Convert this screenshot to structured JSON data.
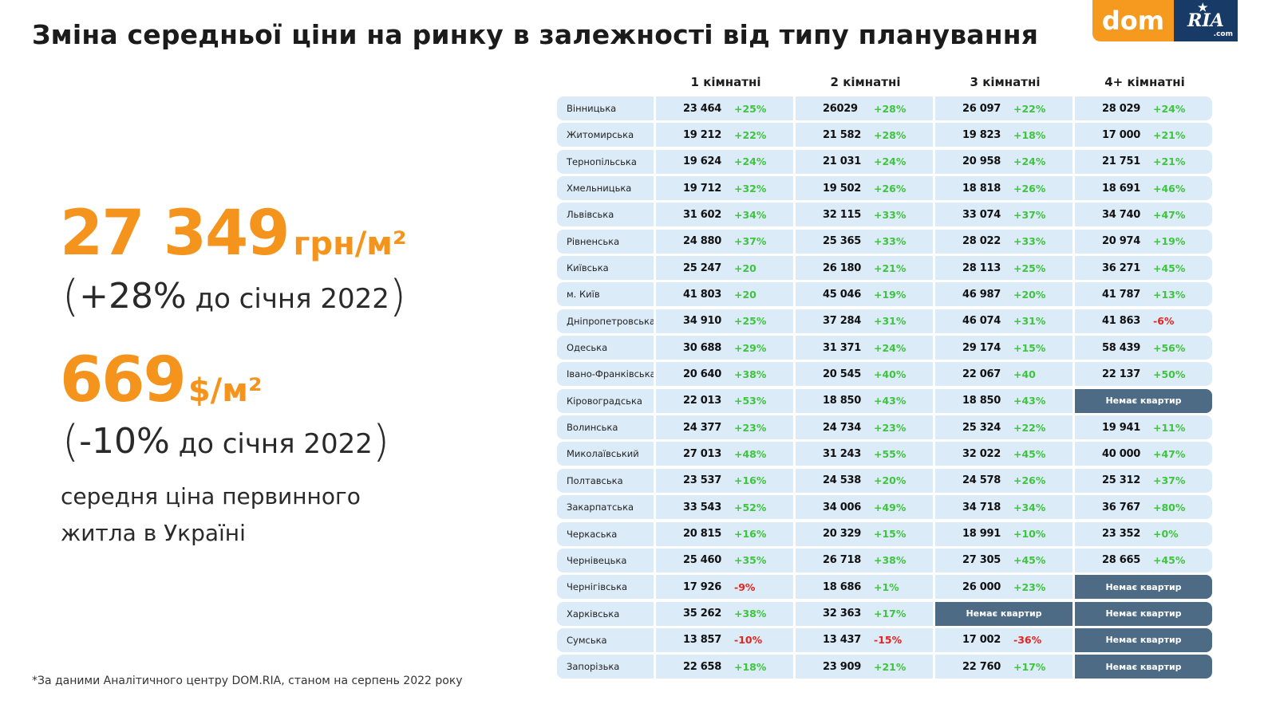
{
  "title": "Зміна середньої ціни на ринку в залежності від типу планування",
  "logo": {
    "left": "dom",
    "right": "RIA",
    "suffix": ".com"
  },
  "summary": {
    "uah_value": "27 349",
    "uah_unit": "грн/м²",
    "uah_change_open": "(",
    "uah_change_pct": "+28%",
    "uah_change_text": " до січня 2022",
    "uah_change_close": ")",
    "usd_value": "669",
    "usd_unit": "$/м²",
    "usd_change_open": "(",
    "usd_change_pct": "-10%",
    "usd_change_text": " до січня 2022",
    "usd_change_close": ")",
    "desc_line1": "середня ціна первинного",
    "desc_line2": "житла в Україні"
  },
  "footnote": "*За даними Аналітичного центру DOM.RIA, станом на серпень 2022 року",
  "table": {
    "headers": [
      "1 кімнатні",
      "2 кімнатні",
      "3 кімнатні",
      "4+ кімнатні"
    ],
    "no_flats_label": "Немає квартир",
    "colors": {
      "positive": "#3fc43f",
      "negative": "#e5241f",
      "cell_bg": "#dcebf8",
      "na_bg": "#4d6b85"
    },
    "rows": [
      {
        "region": "Вінницька",
        "cells": [
          [
            "23 464",
            "+25%"
          ],
          [
            "26029",
            "+28%"
          ],
          [
            "26 097",
            "+22%"
          ],
          [
            "28 029",
            "+24%"
          ]
        ]
      },
      {
        "region": "Житомирська",
        "cells": [
          [
            "19 212",
            "+22%"
          ],
          [
            "21 582",
            "+28%"
          ],
          [
            "19 823",
            "+18%"
          ],
          [
            "17 000",
            "+21%"
          ]
        ]
      },
      {
        "region": "Тернопільська",
        "cells": [
          [
            "19  624",
            "+24%"
          ],
          [
            "21 031",
            "+24%"
          ],
          [
            "20 958",
            "+24%"
          ],
          [
            "21 751",
            "+21%"
          ]
        ]
      },
      {
        "region": "Хмельницька",
        "cells": [
          [
            "19 712",
            "+32%"
          ],
          [
            "19 502",
            "+26%"
          ],
          [
            "18 818",
            "+26%"
          ],
          [
            "18 691",
            "+46%"
          ]
        ]
      },
      {
        "region": "Львівська",
        "cells": [
          [
            "31 602",
            "+34%"
          ],
          [
            "32 115",
            "+33%"
          ],
          [
            "33 074",
            "+37%"
          ],
          [
            "34 740",
            "+47%"
          ]
        ]
      },
      {
        "region": "Рівненська",
        "cells": [
          [
            "24 880",
            "+37%"
          ],
          [
            "25 365",
            "+33%"
          ],
          [
            "28 022",
            "+33%"
          ],
          [
            "20 974",
            "+19%"
          ]
        ]
      },
      {
        "region": "Київська",
        "cells": [
          [
            "25 247",
            "+20"
          ],
          [
            "26 180",
            "+21%"
          ],
          [
            "28 113",
            "+25%"
          ],
          [
            "36 271",
            "+45%"
          ]
        ]
      },
      {
        "region": "м. Київ",
        "cells": [
          [
            "41 803",
            "+20"
          ],
          [
            "45 046",
            "+19%"
          ],
          [
            "46 987",
            "+20%"
          ],
          [
            "41 787",
            "+13%"
          ]
        ]
      },
      {
        "region": "Дніпропетровська",
        "cells": [
          [
            "34 910",
            "+25%"
          ],
          [
            "37 284",
            "+31%"
          ],
          [
            "46 074",
            "+31%"
          ],
          [
            "41 863",
            "-6%"
          ]
        ]
      },
      {
        "region": "Одеська",
        "cells": [
          [
            "30 688",
            "+29%"
          ],
          [
            "31 371",
            "+24%"
          ],
          [
            "29 174",
            "+15%"
          ],
          [
            "58 439",
            "+56%"
          ]
        ]
      },
      {
        "region": "Івано-Франківська",
        "cells": [
          [
            "20 640",
            "+38%"
          ],
          [
            "20 545",
            "+40%"
          ],
          [
            "22 067",
            "+40"
          ],
          [
            "22 137",
            "+50%"
          ]
        ]
      },
      {
        "region": "Кіровоградська",
        "cells": [
          [
            "22 013",
            "+53%"
          ],
          [
            "18 850",
            "+43%"
          ],
          [
            "18 850",
            "+43%"
          ],
          null
        ]
      },
      {
        "region": "Волинська",
        "cells": [
          [
            "24 377",
            "+23%"
          ],
          [
            "24 734",
            "+23%"
          ],
          [
            "25 324",
            "+22%"
          ],
          [
            "19 941",
            "+11%"
          ]
        ]
      },
      {
        "region": "Миколаївський",
        "cells": [
          [
            "27 013",
            "+48%"
          ],
          [
            "31 243",
            "+55%"
          ],
          [
            "32 022",
            "+45%"
          ],
          [
            "40 000",
            "+47%"
          ]
        ]
      },
      {
        "region": "Полтавська",
        "cells": [
          [
            "23 537",
            "+16%"
          ],
          [
            "24 538",
            "+20%"
          ],
          [
            "24 578",
            "+26%"
          ],
          [
            "25 312",
            "+37%"
          ]
        ]
      },
      {
        "region": "Закарпатська",
        "cells": [
          [
            "33 543",
            "+52%"
          ],
          [
            "34 006",
            "+49%"
          ],
          [
            "34 718",
            "+34%"
          ],
          [
            "36 767",
            "+80%"
          ]
        ]
      },
      {
        "region": "Черкаська",
        "cells": [
          [
            "20 815",
            "+16%"
          ],
          [
            "20 329",
            "+15%"
          ],
          [
            "18 991",
            "+10%"
          ],
          [
            "23 352",
            "+0%"
          ]
        ]
      },
      {
        "region": "Чернівецька",
        "cells": [
          [
            "25 460",
            "+35%"
          ],
          [
            "26 718",
            "+38%"
          ],
          [
            "27 305",
            "+45%"
          ],
          [
            "28 665",
            "+45%"
          ]
        ]
      },
      {
        "region": "Чернігівська",
        "cells": [
          [
            "17 926",
            "-9%"
          ],
          [
            "18 686",
            "+1%"
          ],
          [
            "26 000",
            "+23%"
          ],
          null
        ]
      },
      {
        "region": "Харківська",
        "cells": [
          [
            "35 262",
            "+38%"
          ],
          [
            "32 363",
            "+17%"
          ],
          null,
          null
        ]
      },
      {
        "region": "Сумська",
        "cells": [
          [
            "13 857",
            "-10%"
          ],
          [
            "13 437",
            "-15%"
          ],
          [
            "17 002",
            "-36%"
          ],
          null
        ]
      },
      {
        "region": "Запорізька",
        "cells": [
          [
            "22 658",
            "+18%"
          ],
          [
            "23 909",
            "+21%"
          ],
          [
            "22 760",
            "+17%"
          ],
          null
        ]
      }
    ]
  }
}
